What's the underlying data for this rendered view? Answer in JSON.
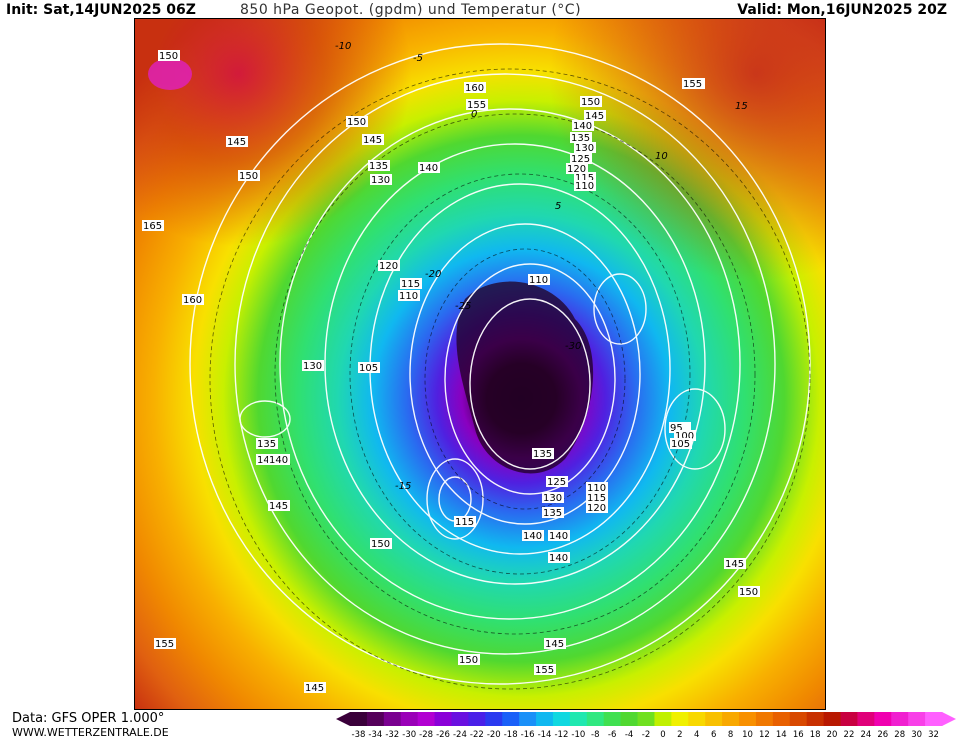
{
  "header": {
    "init": "Init: Sat,14JUN2025 06Z",
    "title": "850 hPa Geopot. (gpdm) und Temperatur (°C)",
    "valid": "Valid: Mon,16JUN2025 20Z"
  },
  "footer": {
    "data_source": "Data: GFS OPER 1.000°",
    "website": "WWW.WETTERZENTRALE.DE"
  },
  "legend": {
    "values": [
      "-38",
      "-34",
      "-32",
      "-30",
      "-28",
      "-26",
      "-24",
      "-22",
      "-20",
      "-18",
      "-16",
      "-14",
      "-12",
      "-10",
      "-8",
      "-6",
      "-4",
      "-2",
      "0",
      "2",
      "4",
      "6",
      "8",
      "10",
      "12",
      "14",
      "16",
      "18",
      "20",
      "22",
      "24",
      "26",
      "28",
      "30",
      "32"
    ],
    "colors": [
      "#3a003a",
      "#55005a",
      "#7a0090",
      "#9a00b8",
      "#b200d2",
      "#8a00d8",
      "#6a10e0",
      "#4a20e8",
      "#2a3af0",
      "#1a60f8",
      "#1a90f8",
      "#10b8f0",
      "#10d8e0",
      "#20e8b0",
      "#30e880",
      "#40e050",
      "#50d830",
      "#70e020",
      "#c0f000",
      "#f0f000",
      "#f8d800",
      "#f8c000",
      "#f8a800",
      "#f89000",
      "#f07800",
      "#e86000",
      "#d84800",
      "#c83000",
      "#b81800",
      "#c80040",
      "#e0007a",
      "#f000b0",
      "#f020d0",
      "#f840e8",
      "#ff60ff"
    ]
  },
  "contour_labels": {
    "geopotential": [
      {
        "v": "150"
      },
      {
        "v": "160"
      },
      {
        "v": "155"
      },
      {
        "v": "150"
      },
      {
        "v": "145"
      },
      {
        "v": "140"
      },
      {
        "v": "135"
      },
      {
        "v": "130"
      },
      {
        "v": "125"
      },
      {
        "v": "120"
      },
      {
        "v": "115"
      },
      {
        "v": "110"
      },
      {
        "v": "155"
      },
      {
        "v": "145"
      },
      {
        "v": "150"
      },
      {
        "v": "150"
      },
      {
        "v": "145"
      },
      {
        "v": "135"
      },
      {
        "v": "130"
      },
      {
        "v": "140"
      },
      {
        "v": "120"
      },
      {
        "v": "115"
      },
      {
        "v": "110"
      },
      {
        "v": "160"
      },
      {
        "v": "130"
      },
      {
        "v": "105"
      },
      {
        "v": "110"
      },
      {
        "v": "140"
      },
      {
        "v": "135"
      },
      {
        "v": "140"
      },
      {
        "v": "145"
      },
      {
        "v": "150"
      },
      {
        "v": "140"
      },
      {
        "v": "155"
      },
      {
        "v": "145"
      },
      {
        "v": "135"
      },
      {
        "v": "125"
      },
      {
        "v": "130"
      },
      {
        "v": "135"
      },
      {
        "v": "115"
      },
      {
        "v": "140"
      },
      {
        "v": "140"
      },
      {
        "v": "110"
      },
      {
        "v": "115"
      },
      {
        "v": "120"
      },
      {
        "v": "95"
      },
      {
        "v": "100"
      },
      {
        "v": "105"
      },
      {
        "v": "145"
      },
      {
        "v": "150"
      },
      {
        "v": "155"
      },
      {
        "v": "150"
      },
      {
        "v": "145"
      },
      {
        "v": "165"
      },
      {
        "v": "155"
      }
    ],
    "temperature": [
      "-10",
      "-5",
      "0",
      "5",
      "10",
      "15",
      "-15",
      "-20",
      "-25",
      "-30"
    ]
  }
}
